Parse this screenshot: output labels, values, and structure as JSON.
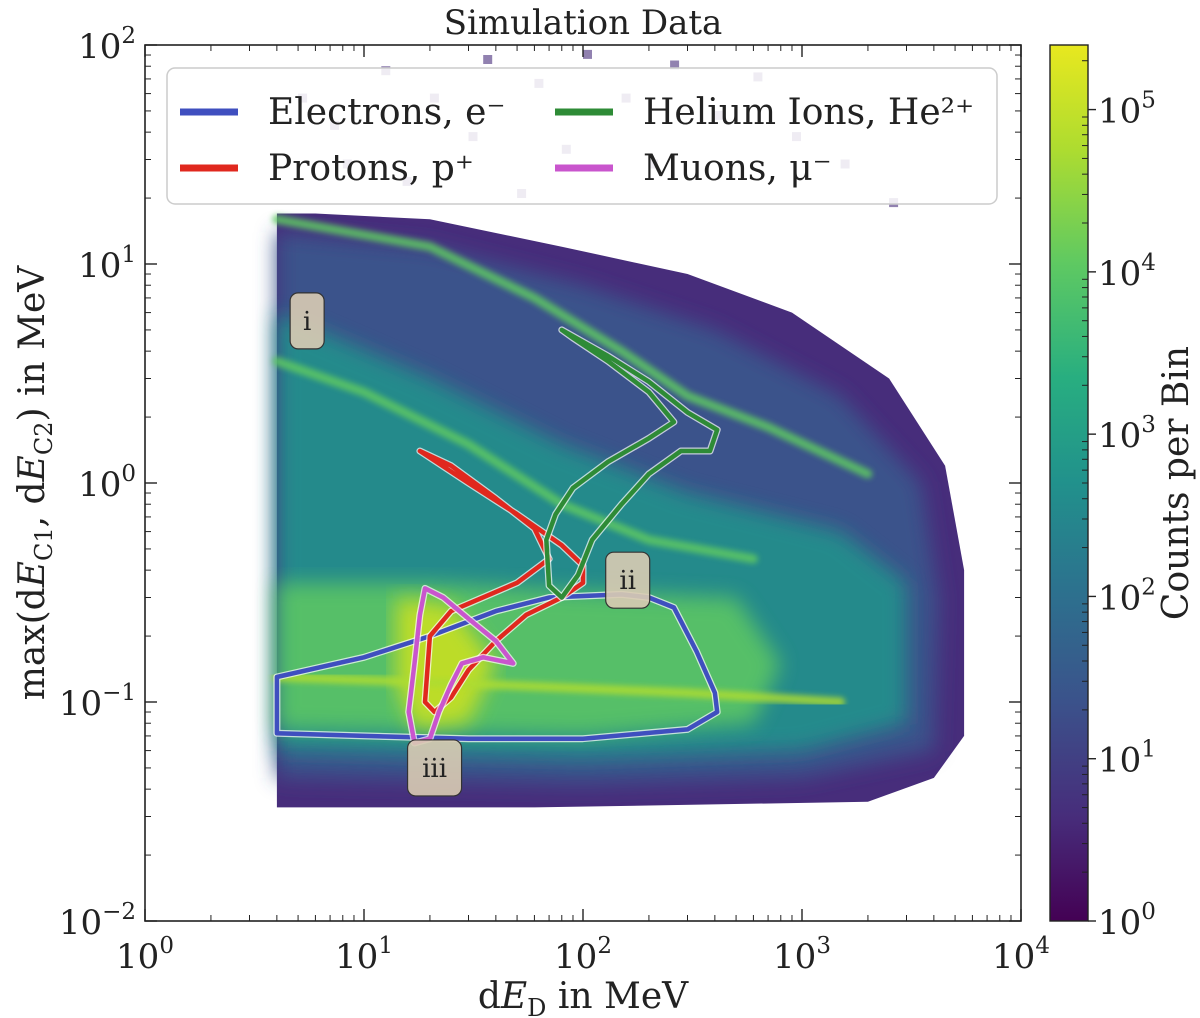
{
  "chart_data": {
    "type": "heatmap",
    "title": "Simulation Data",
    "xlabel": "dE_D in MeV",
    "ylabel": "max(dE_C1, dE_C2) in MeV",
    "colorbar_label": "Counts per Bin",
    "xscale": "log",
    "yscale": "log",
    "xlim": [
      1,
      10000
    ],
    "ylim": [
      0.01,
      100
    ],
    "clim": [
      1,
      250000
    ],
    "colormap": "viridis",
    "x_ticks": [
      {
        "value": 1,
        "base": "10",
        "exp": "0"
      },
      {
        "value": 10,
        "base": "10",
        "exp": "1"
      },
      {
        "value": 100,
        "base": "10",
        "exp": "2"
      },
      {
        "value": 1000,
        "base": "10",
        "exp": "3"
      },
      {
        "value": 10000,
        "base": "10",
        "exp": "4"
      }
    ],
    "y_ticks": [
      {
        "value": 0.01,
        "base": "10",
        "exp": "−2"
      },
      {
        "value": 0.1,
        "base": "10",
        "exp": "−1"
      },
      {
        "value": 1,
        "base": "10",
        "exp": "0"
      },
      {
        "value": 10,
        "base": "10",
        "exp": "1"
      },
      {
        "value": 100,
        "base": "10",
        "exp": "2"
      }
    ],
    "colorbar_ticks": [
      {
        "value": 1,
        "base": "10",
        "exp": "0"
      },
      {
        "value": 10,
        "base": "10",
        "exp": "1"
      },
      {
        "value": 100,
        "base": "10",
        "exp": "2"
      },
      {
        "value": 1000,
        "base": "10",
        "exp": "3"
      },
      {
        "value": 10000,
        "base": "10",
        "exp": "4"
      },
      {
        "value": 100000,
        "base": "10",
        "exp": "5"
      }
    ],
    "legend_position": "top",
    "series": [
      {
        "name": "Electrons, e⁻",
        "color": "#3f4fbf",
        "points": [
          [
            4,
            0.13
          ],
          [
            10,
            0.16
          ],
          [
            20,
            0.2
          ],
          [
            40,
            0.26
          ],
          [
            70,
            0.3
          ],
          [
            150,
            0.31
          ],
          [
            200,
            0.3
          ],
          [
            260,
            0.27
          ],
          [
            330,
            0.17
          ],
          [
            400,
            0.11
          ],
          [
            410,
            0.09
          ],
          [
            300,
            0.075
          ],
          [
            100,
            0.068
          ],
          [
            30,
            0.068
          ],
          [
            10,
            0.07
          ],
          [
            4,
            0.072
          ]
        ]
      },
      {
        "name": "Protons, p⁺",
        "color": "#e0281e",
        "points": [
          [
            18,
            1.4
          ],
          [
            30,
            1.0
          ],
          [
            50,
            0.72
          ],
          [
            80,
            0.52
          ],
          [
            100,
            0.42
          ],
          [
            100,
            0.35
          ],
          [
            80,
            0.3
          ],
          [
            55,
            0.25
          ],
          [
            40,
            0.19
          ],
          [
            30,
            0.14
          ],
          [
            25,
            0.105
          ],
          [
            21,
            0.09
          ],
          [
            19,
            0.1
          ],
          [
            20,
            0.2
          ],
          [
            25,
            0.26
          ],
          [
            50,
            0.35
          ],
          [
            70,
            0.45
          ],
          [
            60,
            0.62
          ],
          [
            40,
            0.85
          ],
          [
            25,
            1.2
          ],
          [
            18,
            1.4
          ]
        ]
      },
      {
        "name": "Helium Ions, He²⁺",
        "color": "#2e8b36",
        "points": [
          [
            80,
            5.0
          ],
          [
            130,
            3.8
          ],
          [
            200,
            2.9
          ],
          [
            300,
            2.1
          ],
          [
            410,
            1.75
          ],
          [
            380,
            1.4
          ],
          [
            280,
            1.4
          ],
          [
            200,
            1.1
          ],
          [
            150,
            0.8
          ],
          [
            110,
            0.55
          ],
          [
            95,
            0.38
          ],
          [
            80,
            0.3
          ],
          [
            70,
            0.34
          ],
          [
            68,
            0.55
          ],
          [
            75,
            0.72
          ],
          [
            90,
            0.95
          ],
          [
            130,
            1.25
          ],
          [
            200,
            1.6
          ],
          [
            260,
            1.9
          ],
          [
            200,
            2.6
          ],
          [
            130,
            3.6
          ],
          [
            90,
            4.6
          ],
          [
            80,
            5.0
          ]
        ]
      },
      {
        "name": "Muons, μ⁻",
        "color": "#c955cd",
        "points": [
          [
            19,
            0.33
          ],
          [
            23,
            0.3
          ],
          [
            30,
            0.24
          ],
          [
            40,
            0.19
          ],
          [
            48,
            0.15
          ],
          [
            35,
            0.16
          ],
          [
            28,
            0.15
          ],
          [
            25,
            0.12
          ],
          [
            22,
            0.09
          ],
          [
            20,
            0.068
          ],
          [
            17,
            0.065
          ],
          [
            16,
            0.09
          ],
          [
            17,
            0.15
          ],
          [
            18,
            0.25
          ],
          [
            19,
            0.33
          ]
        ]
      }
    ],
    "annotations": [
      {
        "text": "i",
        "x": 5.5,
        "y": 5.5
      },
      {
        "text": "ii",
        "x": 160,
        "y": 0.36
      },
      {
        "text": "iii",
        "x": 21,
        "y": 0.05
      }
    ]
  }
}
